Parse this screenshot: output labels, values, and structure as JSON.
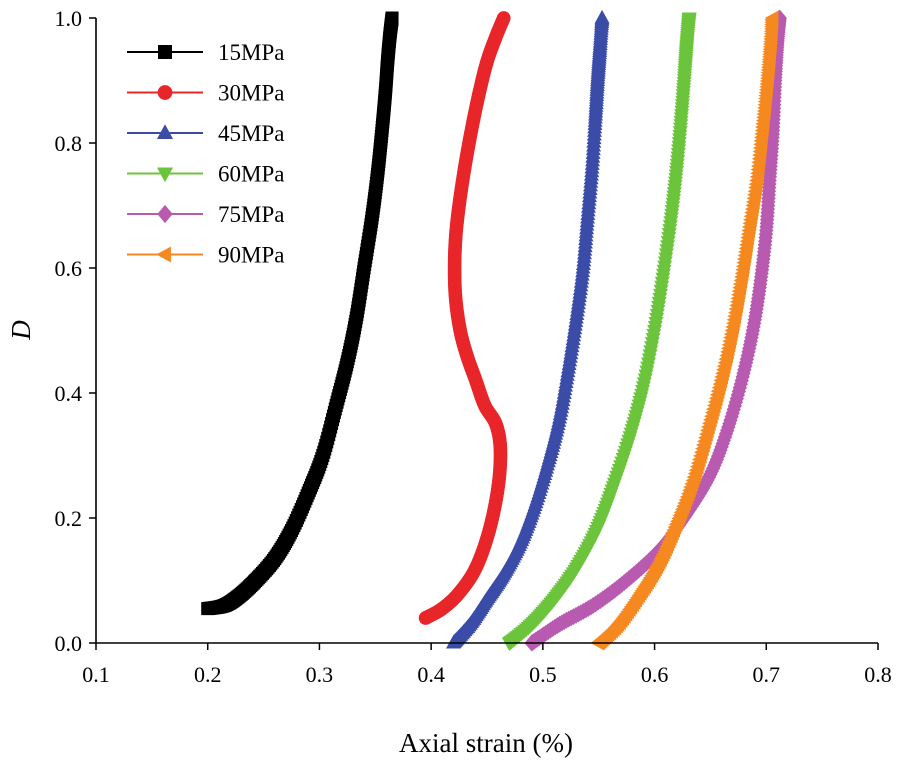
{
  "chart_data": {
    "type": "scatter",
    "title": "",
    "xlabel": "Axial strain (%)",
    "ylabel": "D",
    "xlim": [
      0.1,
      0.8
    ],
    "ylim": [
      0.0,
      1.0
    ],
    "x_ticks": [
      "0.1",
      "0.2",
      "0.3",
      "0.4",
      "0.5",
      "0.6",
      "0.7",
      "0.8"
    ],
    "y_ticks": [
      "0.0",
      "0.2",
      "0.4",
      "0.6",
      "0.8",
      "1.0"
    ],
    "grid": false,
    "legend_position": "top-left",
    "series": [
      {
        "name": "15MPa",
        "color": "#000000",
        "marker": "square",
        "points": [
          [
            0.2,
            0.055
          ],
          [
            0.215,
            0.06
          ],
          [
            0.228,
            0.075
          ],
          [
            0.243,
            0.1
          ],
          [
            0.26,
            0.135
          ],
          [
            0.275,
            0.18
          ],
          [
            0.29,
            0.24
          ],
          [
            0.303,
            0.3
          ],
          [
            0.315,
            0.38
          ],
          [
            0.325,
            0.45
          ],
          [
            0.333,
            0.52
          ],
          [
            0.34,
            0.6
          ],
          [
            0.347,
            0.68
          ],
          [
            0.352,
            0.75
          ],
          [
            0.356,
            0.82
          ],
          [
            0.359,
            0.88
          ],
          [
            0.361,
            0.93
          ],
          [
            0.363,
            0.97
          ],
          [
            0.365,
            1.0
          ]
        ]
      },
      {
        "name": "30MPa",
        "color": "#e8262a",
        "marker": "circle",
        "points": [
          [
            0.395,
            0.04
          ],
          [
            0.41,
            0.055
          ],
          [
            0.425,
            0.08
          ],
          [
            0.44,
            0.12
          ],
          [
            0.452,
            0.18
          ],
          [
            0.46,
            0.25
          ],
          [
            0.462,
            0.31
          ],
          [
            0.458,
            0.35
          ],
          [
            0.448,
            0.38
          ],
          [
            0.44,
            0.42
          ],
          [
            0.432,
            0.46
          ],
          [
            0.426,
            0.5
          ],
          [
            0.422,
            0.55
          ],
          [
            0.421,
            0.6
          ],
          [
            0.422,
            0.65
          ],
          [
            0.425,
            0.7
          ],
          [
            0.43,
            0.76
          ],
          [
            0.436,
            0.82
          ],
          [
            0.443,
            0.88
          ],
          [
            0.45,
            0.93
          ],
          [
            0.458,
            0.97
          ],
          [
            0.465,
            1.0
          ]
        ]
      },
      {
        "name": "45MPa",
        "color": "#3a4ca8",
        "marker": "triangle-up",
        "points": [
          [
            0.42,
            0.0
          ],
          [
            0.435,
            0.03
          ],
          [
            0.45,
            0.07
          ],
          [
            0.465,
            0.11
          ],
          [
            0.48,
            0.16
          ],
          [
            0.493,
            0.22
          ],
          [
            0.505,
            0.29
          ],
          [
            0.515,
            0.36
          ],
          [
            0.523,
            0.44
          ],
          [
            0.53,
            0.52
          ],
          [
            0.536,
            0.6
          ],
          [
            0.54,
            0.68
          ],
          [
            0.544,
            0.76
          ],
          [
            0.547,
            0.84
          ],
          [
            0.549,
            0.9
          ],
          [
            0.551,
            0.95
          ],
          [
            0.553,
            1.0
          ]
        ]
      },
      {
        "name": "60MPa",
        "color": "#6cc43c",
        "marker": "triangle-down",
        "points": [
          [
            0.47,
            0.0
          ],
          [
            0.49,
            0.03
          ],
          [
            0.51,
            0.07
          ],
          [
            0.53,
            0.12
          ],
          [
            0.548,
            0.18
          ],
          [
            0.563,
            0.25
          ],
          [
            0.578,
            0.33
          ],
          [
            0.59,
            0.41
          ],
          [
            0.6,
            0.5
          ],
          [
            0.608,
            0.59
          ],
          [
            0.615,
            0.68
          ],
          [
            0.62,
            0.76
          ],
          [
            0.624,
            0.84
          ],
          [
            0.627,
            0.91
          ],
          [
            0.629,
            0.96
          ],
          [
            0.631,
            1.0
          ]
        ]
      },
      {
        "name": "75MPa",
        "color": "#b75ab0",
        "marker": "diamond",
        "points": [
          [
            0.49,
            0.0
          ],
          [
            0.515,
            0.03
          ],
          [
            0.545,
            0.06
          ],
          [
            0.575,
            0.1
          ],
          [
            0.605,
            0.15
          ],
          [
            0.63,
            0.21
          ],
          [
            0.65,
            0.27
          ],
          [
            0.665,
            0.34
          ],
          [
            0.678,
            0.42
          ],
          [
            0.688,
            0.5
          ],
          [
            0.695,
            0.58
          ],
          [
            0.7,
            0.66
          ],
          [
            0.703,
            0.74
          ],
          [
            0.706,
            0.82
          ],
          [
            0.708,
            0.9
          ],
          [
            0.71,
            0.96
          ],
          [
            0.712,
            1.0
          ]
        ]
      },
      {
        "name": "90MPa",
        "color": "#f5891f",
        "marker": "triangle-left",
        "points": [
          [
            0.55,
            0.0
          ],
          [
            0.568,
            0.03
          ],
          [
            0.588,
            0.08
          ],
          [
            0.605,
            0.13
          ],
          [
            0.62,
            0.19
          ],
          [
            0.635,
            0.26
          ],
          [
            0.648,
            0.34
          ],
          [
            0.66,
            0.42
          ],
          [
            0.67,
            0.5
          ],
          [
            0.678,
            0.58
          ],
          [
            0.685,
            0.66
          ],
          [
            0.692,
            0.74
          ],
          [
            0.697,
            0.82
          ],
          [
            0.701,
            0.89
          ],
          [
            0.704,
            0.95
          ],
          [
            0.706,
            1.0
          ]
        ]
      }
    ]
  }
}
